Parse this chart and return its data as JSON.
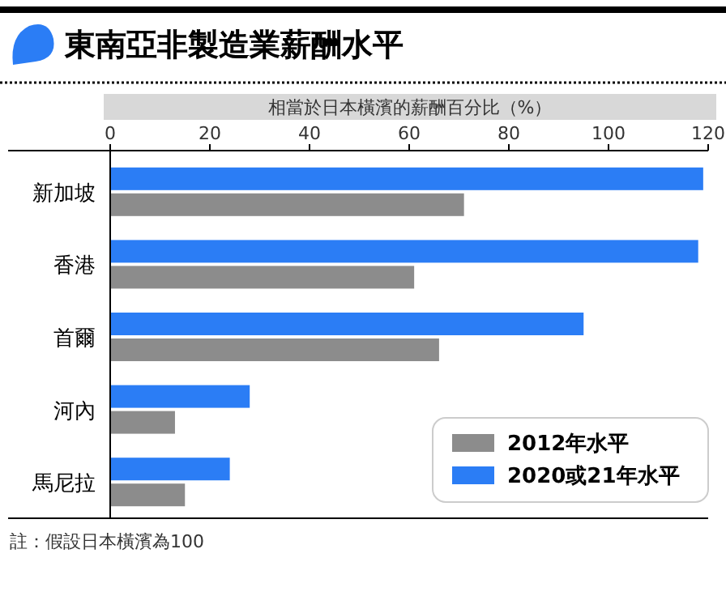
{
  "chart_data": {
    "type": "bar",
    "orientation": "horizontal",
    "title": "東南亞非製造業薪酬水平",
    "xlabel": "相當於日本橫濱的薪酬百分比（%）",
    "categories": [
      "新加坡",
      "香港",
      "首爾",
      "河內",
      "馬尼拉"
    ],
    "series": [
      {
        "name": "2012年水平",
        "color": "#8c8c8c",
        "values": [
          71,
          61,
          66,
          13,
          15
        ]
      },
      {
        "name": "2020或21年水平",
        "color": "#2b7df5",
        "values": [
          119,
          118,
          95,
          28,
          24
        ]
      }
    ],
    "xlim": [
      0,
      120
    ],
    "xticks": [
      0,
      20,
      40,
      60,
      80,
      100,
      120
    ],
    "legend": "bottom right",
    "grid": false,
    "annotations": [
      "註：假設日本橫濱為100"
    ]
  }
}
